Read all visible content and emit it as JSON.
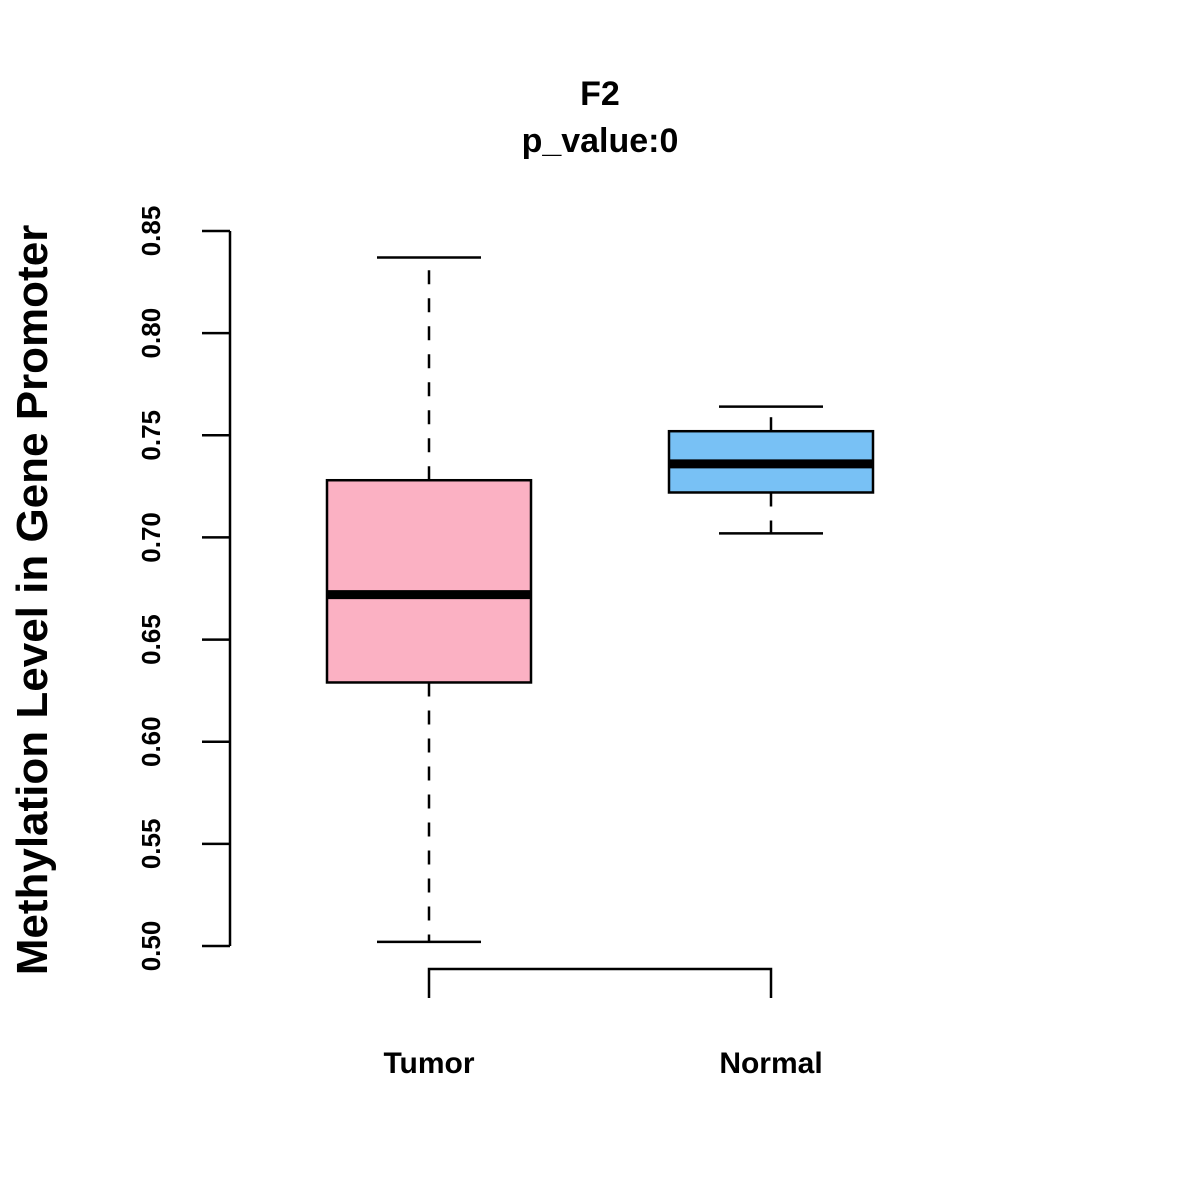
{
  "chart_data": {
    "type": "boxplot",
    "title": "F2",
    "subtitle": "p_value:0",
    "xlabel": "",
    "ylabel": "Methylation Level in Gene Promoter",
    "ylim": [
      0.5,
      0.85
    ],
    "yticks": [
      "0.50",
      "0.55",
      "0.60",
      "0.65",
      "0.70",
      "0.75",
      "0.80",
      "0.85"
    ],
    "categories": [
      "Tumor",
      "Normal"
    ],
    "boxes": [
      {
        "name": "Tumor",
        "min": 0.502,
        "q1": 0.629,
        "median": 0.672,
        "q3": 0.728,
        "max": 0.837,
        "color": "#FBB1C3"
      },
      {
        "name": "Normal",
        "min": 0.702,
        "q1": 0.722,
        "median": 0.736,
        "q3": 0.752,
        "max": 0.764,
        "color": "#78C1F5"
      }
    ],
    "bracket": {
      "from": "Tumor",
      "to": "Normal"
    }
  }
}
